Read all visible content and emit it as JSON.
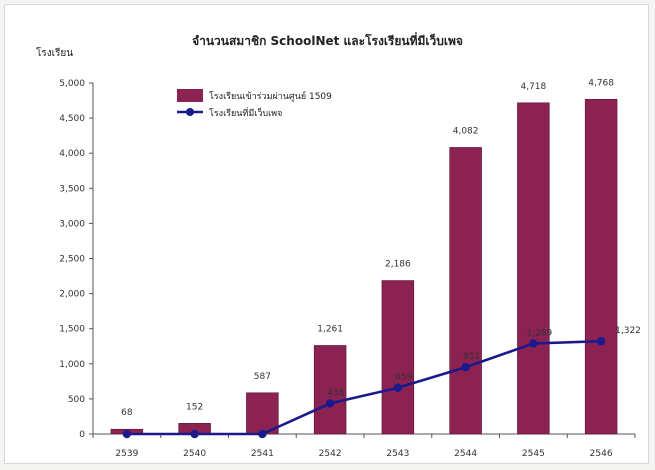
{
  "chart_data": {
    "type": "bar",
    "title": "จำนวนสมาชิก SchoolNet และโรงเรียนที่มีเว็บเพจ",
    "xlabel": "",
    "ylabel": "โรงเรียน",
    "ylim": [
      0,
      5000
    ],
    "yticks": [
      "0",
      "500",
      "1,000",
      "1,500",
      "2,000",
      "2,500",
      "3,000",
      "3,500",
      "4,000",
      "4,500",
      "5,000"
    ],
    "categories": [
      "2539",
      "2540",
      "2541",
      "2542",
      "2543",
      "2544",
      "2545",
      "2546"
    ],
    "series": [
      {
        "name": "โรงเรียนเข้าร่วมผ่านศูนย์ 1509",
        "type": "bar",
        "color": "#8b2252",
        "values": [
          68,
          152,
          587,
          1261,
          2186,
          4082,
          4718,
          4768
        ],
        "labels": [
          "68",
          "152",
          "587",
          "1,261",
          "2,186",
          "4,082",
          "4,718",
          "4,768"
        ]
      },
      {
        "name": "โรงเรียนที่มีเว็บเพจ",
        "type": "line",
        "color": "#1a1a8c",
        "values": [
          0,
          0,
          0,
          436,
          659,
          951,
          1289,
          1322
        ],
        "labels": [
          "",
          "",
          "",
          "436",
          "659",
          "951",
          "1,289",
          "1,322"
        ]
      }
    ],
    "grid": false,
    "legend": "top-left"
  }
}
